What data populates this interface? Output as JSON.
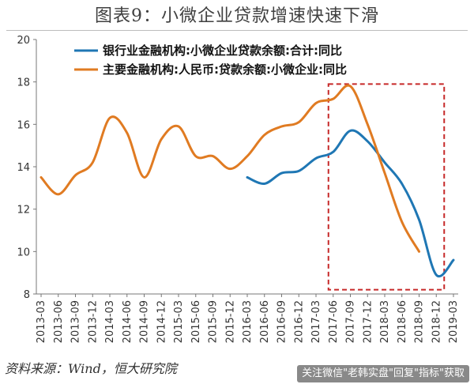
{
  "header": {
    "title": "图表9：小微企业贷款增速快速下滑"
  },
  "footer": {
    "source": "资料来源：Wind，恒大研究院",
    "watermark": "关注微信\"老韩实盘\"回复\"指标\"获取"
  },
  "colors": {
    "blue": "#1f77b4",
    "orange": "#e07b22",
    "highlight": "#c62828"
  },
  "chart_data": {
    "type": "line",
    "title": "",
    "xlabel": "",
    "ylabel": "",
    "ylim": [
      8,
      20
    ],
    "yticks": [
      8,
      10,
      12,
      14,
      16,
      18,
      20
    ],
    "grid": false,
    "legend": "top-left",
    "x_tick_labels": [
      "2013-03",
      "2013-06",
      "2013-09",
      "2013-12",
      "2014-03",
      "2014-06",
      "2014-09",
      "2014-12",
      "2015-03",
      "2015-06",
      "2015-09",
      "2015-12",
      "2016-03",
      "2016-06",
      "2016-09",
      "2016-12",
      "2017-03",
      "2017-06",
      "2017-09",
      "2017-12",
      "2018-03",
      "2018-06",
      "2018-09",
      "2018-12",
      "2019-03"
    ],
    "series": [
      {
        "name": "银行业金融机构:小微企业贷款余额:合计:同比",
        "color": "#1f77b4",
        "x": [
          "2016-03",
          "2016-06",
          "2016-09",
          "2016-12",
          "2017-03",
          "2017-06",
          "2017-09",
          "2017-12",
          "2018-03",
          "2018-06",
          "2018-09",
          "2018-12",
          "2019-03"
        ],
        "values": [
          13.5,
          13.2,
          13.7,
          13.8,
          14.4,
          14.7,
          15.7,
          15.2,
          14.2,
          13.2,
          11.5,
          8.9,
          9.6
        ]
      },
      {
        "name": "主要金融机构:人民币:贷款余额:小微企业:同比",
        "color": "#e07b22",
        "x": [
          "2013-03",
          "2013-06",
          "2013-09",
          "2013-12",
          "2014-03",
          "2014-06",
          "2014-09",
          "2014-12",
          "2015-03",
          "2015-06",
          "2015-09",
          "2015-12",
          "2016-03",
          "2016-06",
          "2016-09",
          "2016-12",
          "2017-03",
          "2017-06",
          "2017-09",
          "2017-12",
          "2018-03",
          "2018-06",
          "2018-09"
        ],
        "values": [
          13.5,
          12.7,
          13.6,
          14.2,
          16.3,
          15.6,
          13.5,
          15.3,
          15.9,
          14.5,
          14.5,
          13.9,
          14.5,
          15.5,
          15.9,
          16.1,
          17.0,
          17.2,
          17.8,
          16.0,
          13.7,
          11.4,
          10.0
        ]
      }
    ],
    "highlight_box": {
      "x_from": "2017-06",
      "x_to": "2018-12",
      "y_from": 8.2,
      "y_to": 17.9
    }
  }
}
